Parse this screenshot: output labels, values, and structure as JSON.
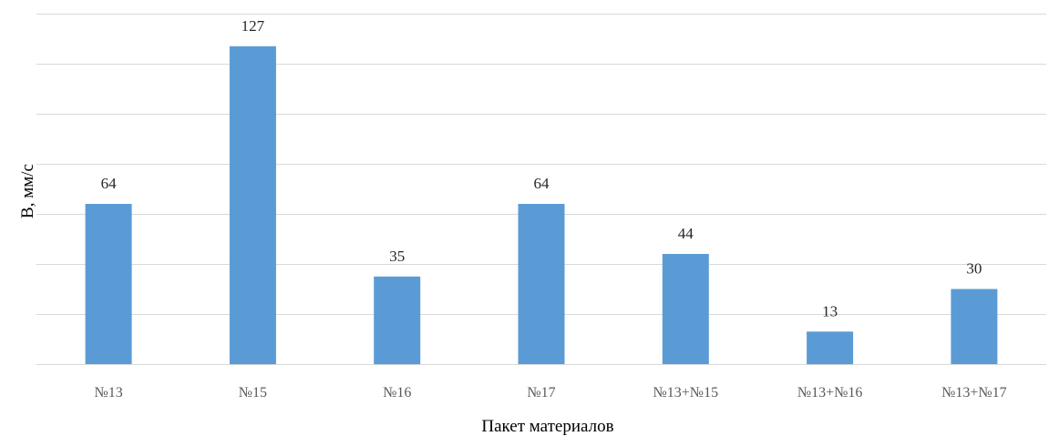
{
  "chart_data": {
    "type": "bar",
    "categories": [
      "№13",
      "№15",
      "№16",
      "№17",
      "№13+№15",
      "№13+№16",
      "№13+№17"
    ],
    "values": [
      64,
      127,
      35,
      64,
      44,
      13,
      30
    ],
    "data_labels": [
      "64",
      "127",
      "35",
      "64",
      "44",
      "13",
      "30"
    ],
    "title": "",
    "xlabel": "Пакет материалов",
    "ylabel": "В, мм/с",
    "ylim": [
      0,
      140
    ],
    "grid": true,
    "grid_step": 20,
    "legend": "none",
    "bar_color": "#5b9bd5"
  }
}
